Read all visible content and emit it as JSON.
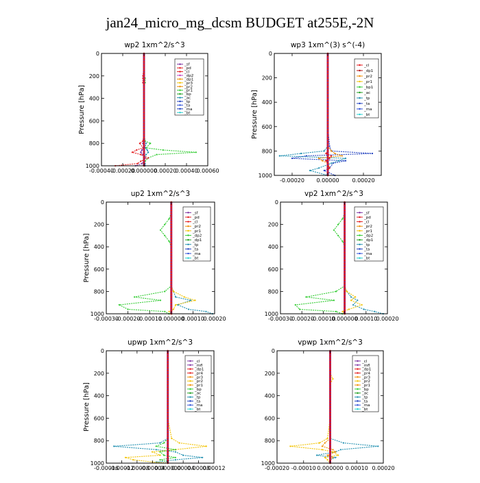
{
  "title": "jan24_micro_mg_dcsm  BUDGET at255E,-2N",
  "colors": {
    "red": "#e41a1c",
    "purple": "#7b2fa0",
    "magenta": "#c040c0",
    "orange": "#f08c00",
    "yellow": "#f2c200",
    "green": "#33cc33",
    "darkgreen": "#1b9e1b",
    "teal": "#1f8fb0",
    "navy": "#1f3fbf",
    "blue": "#2d4fd8",
    "cyan": "#22d0d0",
    "darkred": "#b01010"
  },
  "chart_data": [
    {
      "type": "line",
      "title": "wp2   1xm^2/s^3",
      "ylabel": "Pressure [hPa]",
      "xlim": [
        -0.0004,
        0.0006
      ],
      "ylim": [
        1000,
        0
      ],
      "xticks": [
        -0.0004,
        -0.0002,
        0,
        0.0002,
        0.0004,
        0.0006
      ],
      "xtick_labels": [
        "-0.00040",
        "-0.00020",
        "0.000000",
        "0.00020",
        "0.00040",
        "0.00060"
      ],
      "yticks": [
        0,
        200,
        400,
        600,
        800,
        1000
      ],
      "ytick_labels": [
        "0",
        "200",
        "400",
        "600",
        "800",
        "1000"
      ],
      "legend": [
        "_sf",
        "_pd",
        "_cl",
        "_dp2",
        "_dp1",
        "_pr3",
        "_pr2",
        "_pr1",
        "_bp",
        "_ac",
        "_tp",
        "_ta",
        "_ma",
        "_bt"
      ],
      "legend_colors": [
        "purple",
        "red",
        "red",
        "magenta",
        "orange",
        "yellow",
        "orange",
        "green",
        "darkgreen",
        "teal",
        "navy",
        "blue",
        "navy",
        "cyan"
      ],
      "pressure": [
        0,
        100,
        200,
        220,
        260,
        300,
        400,
        500,
        600,
        700,
        780,
        800,
        840,
        860,
        880,
        900,
        930,
        960,
        980,
        1000
      ],
      "series": [
        {
          "color": "green",
          "values": [
            0,
            0,
            0,
            1e-05,
            1e-05,
            0,
            0,
            0,
            0,
            0,
            1e-05,
            6e-05,
            2e-05,
            0.00018,
            0.00049,
            0.00012,
            4e-05,
            1e-05,
            0,
            0
          ]
        },
        {
          "color": "red",
          "values": [
            0,
            0,
            -1e-05,
            -1e-05,
            -1e-05,
            0,
            0,
            0,
            0,
            0,
            -1e-05,
            -4e-05,
            -1e-05,
            -7e-05,
            -0.00011,
            -3e-05,
            4e-05,
            -3e-05,
            -6e-05,
            -0.00027
          ]
        },
        {
          "color": "purple",
          "values": [
            0,
            0,
            0,
            0,
            0,
            0,
            0,
            0,
            0,
            0,
            0,
            -1e-05,
            0,
            -2e-05,
            -3e-05,
            -1e-05,
            1e-05,
            0,
            -2e-05,
            -8e-05
          ]
        },
        {
          "color": "teal",
          "values": [
            0,
            0,
            0,
            0,
            0,
            0,
            0,
            0,
            0,
            0,
            0,
            2e-05,
            1e-05,
            3e-05,
            4e-05,
            2e-05,
            0,
            0,
            1e-05,
            1e-05
          ]
        }
      ]
    },
    {
      "type": "line",
      "title": "wp3   1xm^(3) s^(-4)",
      "ylabel": "Pressure [hPa]",
      "xlim": [
        -0.0003,
        0.0003
      ],
      "ylim": [
        1000,
        0
      ],
      "xticks": [
        -0.0002,
        0,
        0.0002
      ],
      "xtick_labels": [
        "-0.00020",
        "0.00000",
        "0.00020"
      ],
      "yticks": [
        0,
        200,
        400,
        600,
        800,
        1000
      ],
      "ytick_labels": [
        "0",
        "200",
        "400",
        "600",
        "800",
        "1000"
      ],
      "legend": [
        "_cl",
        "_dp1",
        "_pr2",
        "_pr1",
        "_bp1",
        "_ac",
        "_tp",
        "_ta",
        "_ma",
        "_bt"
      ],
      "legend_colors": [
        "red",
        "darkred",
        "orange",
        "yellow",
        "green",
        "darkgreen",
        "teal",
        "navy",
        "blue",
        "cyan"
      ],
      "pressure": [
        0,
        100,
        200,
        400,
        600,
        760,
        800,
        820,
        840,
        860,
        880,
        900,
        940,
        960,
        1000
      ],
      "series": [
        {
          "color": "navy",
          "values": [
            0,
            0,
            0,
            0,
            0,
            1e-05,
            2e-05,
            0.00025,
            -0.00012,
            -0.0002,
            0.0001,
            3e-05,
            1e-05,
            -2e-05,
            4e-05
          ]
        },
        {
          "color": "teal",
          "values": [
            0,
            0,
            0,
            0,
            0,
            0,
            -2e-05,
            -0.00015,
            -0.00027,
            0.0001,
            6e-05,
            2e-05,
            -5e-05,
            -0.0001,
            0
          ]
        },
        {
          "color": "orange",
          "values": [
            0,
            0,
            0,
            0,
            0,
            0,
            2e-05,
            4e-05,
            8e-05,
            -5e-05,
            -3e-05,
            0,
            1e-05,
            0,
            0
          ]
        },
        {
          "color": "red",
          "values": [
            0,
            0,
            0,
            0,
            0,
            0,
            0,
            -1e-05,
            2e-05,
            1e-05,
            -1e-05,
            0,
            1e-05,
            0,
            0
          ]
        }
      ]
    },
    {
      "type": "line",
      "title": "up2   1xm^2/s^3",
      "ylabel": "Pressure [hPa]",
      "xlim": [
        -0.0003,
        0.0002
      ],
      "ylim": [
        1000,
        0
      ],
      "xticks": [
        -0.0003,
        -0.0002,
        -0.0001,
        0,
        0.0001,
        0.0002
      ],
      "xtick_labels": [
        "-0.00030",
        "-0.00020",
        "-0.00010",
        "0.000000",
        "0.00010",
        "0.00020"
      ],
      "yticks": [
        0,
        200,
        400,
        600,
        800,
        1000
      ],
      "ytick_labels": [
        "0",
        "200",
        "400",
        "600",
        "800",
        "1000"
      ],
      "legend": [
        "_sf",
        "_pd",
        "_cl",
        "_pr2",
        "_pr1",
        "_dp2",
        "_dp1",
        "_tp",
        "_ta",
        "_ma",
        "_bt"
      ],
      "legend_colors": [
        "purple",
        "red",
        "red",
        "orange",
        "yellow",
        "green",
        "darkgreen",
        "teal",
        "navy",
        "blue",
        "cyan"
      ],
      "pressure": [
        0,
        100,
        150,
        200,
        250,
        300,
        350,
        400,
        600,
        750,
        800,
        850,
        880,
        920,
        960,
        980,
        1000
      ],
      "series": [
        {
          "color": "green",
          "values": [
            0,
            0,
            -1e-05,
            -3e-05,
            -5e-05,
            -3e-05,
            -1e-05,
            0,
            0,
            0,
            -3e-05,
            -0.00017,
            -5e-05,
            -0.00024,
            -0.0002,
            -3e-05,
            -1e-05
          ]
        },
        {
          "color": "teal",
          "values": [
            0,
            0,
            0,
            0,
            0,
            0,
            0,
            0,
            0,
            0,
            1e-05,
            2e-05,
            9e-05,
            3e-05,
            8e-05,
            0.00016,
            0.00019
          ]
        },
        {
          "color": "yellow",
          "values": [
            0,
            0,
            0,
            0,
            0,
            0,
            0,
            0,
            0,
            0,
            1e-05,
            6e-05,
            0.00011,
            2e-05,
            1e-05,
            -1e-05,
            0
          ]
        },
        {
          "color": "purple",
          "values": [
            0,
            0,
            0,
            0,
            0,
            0,
            0,
            0,
            0,
            0,
            0,
            0,
            0,
            0,
            0,
            0,
            0
          ]
        }
      ]
    },
    {
      "type": "line",
      "title": "vp2   1xm^2/s^3",
      "ylabel": "",
      "xlim": [
        -0.0003,
        0.0002
      ],
      "ylim": [
        1000,
        0
      ],
      "xticks": [
        -0.0003,
        -0.0002,
        -0.0001,
        0,
        0.0001,
        0.0002
      ],
      "xtick_labels": [
        "-0.00030",
        "-0.00020",
        "-0.00010",
        "0.000000",
        "0.00010",
        "0.00020"
      ],
      "yticks": [
        0,
        200,
        400,
        600,
        800,
        1000
      ],
      "ytick_labels": [
        "0",
        "200",
        "400",
        "600",
        "800",
        "1000"
      ],
      "legend": [
        "_sf",
        "_pd",
        "_cl",
        "_pr2",
        "_pr1",
        "_dp2",
        "_dp1",
        "_tp",
        "_ta",
        "_ma",
        "_bt"
      ],
      "legend_colors": [
        "purple",
        "red",
        "red",
        "orange",
        "yellow",
        "green",
        "darkgreen",
        "teal",
        "navy",
        "blue",
        "cyan"
      ],
      "pressure": [
        0,
        100,
        150,
        200,
        250,
        300,
        350,
        400,
        600,
        750,
        800,
        850,
        880,
        920,
        960,
        980,
        1000
      ],
      "series": [
        {
          "color": "green",
          "values": [
            0,
            0,
            -1e-05,
            -3e-05,
            -5e-05,
            -3e-05,
            -1e-05,
            0,
            0,
            0,
            -4e-05,
            -0.00018,
            -5e-05,
            -0.00023,
            -0.00021,
            -4e-05,
            -1e-05
          ]
        },
        {
          "color": "teal",
          "values": [
            0,
            0,
            0,
            0,
            0,
            0,
            0,
            0,
            0,
            0,
            1e-05,
            3e-05,
            6e-05,
            4e-05,
            9e-05,
            0.00014,
            0.00018
          ]
        },
        {
          "color": "yellow",
          "values": [
            0,
            0,
            0,
            0,
            0,
            0,
            0,
            0,
            0,
            0,
            1e-05,
            5e-05,
            3e-05,
            8e-05,
            2e-05,
            -1e-05,
            0
          ]
        },
        {
          "color": "purple",
          "values": [
            0,
            0,
            0,
            0,
            0,
            0,
            0,
            0,
            0,
            0,
            0,
            0,
            0,
            0,
            0,
            0,
            0
          ]
        }
      ]
    },
    {
      "type": "line",
      "title": "upwp   1xm^2/s^3",
      "ylabel": "Pressure [hPa]",
      "xlim": [
        -0.00016,
        0.00012
      ],
      "ylim": [
        1000,
        0
      ],
      "xticks": [
        -0.00016,
        -0.00012,
        -8e-05,
        -4e-05,
        0,
        4e-05,
        8e-05,
        0.00012
      ],
      "xtick_labels": [
        "-0.00016",
        "-0.00012",
        "-0.00008",
        "-0.00004",
        "0.000000",
        "0.00004",
        "0.00008",
        "0.00012"
      ],
      "yticks": [
        0,
        200,
        400,
        600,
        800,
        1000
      ],
      "ytick_labels": [
        "0",
        "200",
        "400",
        "600",
        "800",
        "1000"
      ],
      "legend": [
        "_cl",
        "_mfl",
        "_dp1",
        "_pr4",
        "_pr3",
        "_pr2",
        "_pr1",
        "_bp",
        "_ac",
        "_tp",
        "_ta",
        "_ma",
        "_bt"
      ],
      "legend_colors": [
        "purple",
        "purple",
        "red",
        "red",
        "orange",
        "yellow",
        "orange",
        "green",
        "darkgreen",
        "teal",
        "navy",
        "blue",
        "cyan"
      ],
      "pressure": [
        0,
        100,
        200,
        400,
        600,
        780,
        820,
        850,
        880,
        900,
        930,
        950,
        970,
        990,
        1000
      ],
      "series": [
        {
          "color": "teal",
          "values": [
            0,
            0,
            0,
            0,
            0,
            0,
            -2e-05,
            -0.00014,
            -3e-05,
            2e-05,
            4e-05,
            9e-05,
            2e-05,
            -3e-05,
            0
          ]
        },
        {
          "color": "yellow",
          "values": [
            0,
            0,
            0,
            0,
            0,
            1e-05,
            3e-05,
            0.0001,
            2e-05,
            -4e-05,
            -2e-05,
            -0.00011,
            -9e-05,
            -4e-05,
            0
          ]
        },
        {
          "color": "green",
          "values": [
            0,
            0,
            0,
            0,
            0,
            0,
            -1e-05,
            -3e-05,
            2e-05,
            -2e-05,
            -1e-05,
            2e-05,
            -2e-05,
            0,
            0
          ]
        },
        {
          "color": "purple",
          "values": [
            0,
            0,
            0,
            0,
            0,
            0,
            0,
            0,
            0,
            0,
            0,
            0,
            0,
            0,
            0
          ]
        }
      ]
    },
    {
      "type": "line",
      "title": "vpwp   1xm^2/s^3",
      "ylabel": "",
      "xlim": [
        -0.0002,
        0.0002
      ],
      "ylim": [
        1000,
        0
      ],
      "xticks": [
        -0.0002,
        -0.0001,
        0,
        0.0001,
        0.0002
      ],
      "xtick_labels": [
        "-0.00020",
        "-0.00010",
        "0.000000",
        "0.00010",
        "0.00020"
      ],
      "yticks": [
        0,
        200,
        400,
        600,
        800,
        1000
      ],
      "ytick_labels": [
        "0",
        "200",
        "400",
        "600",
        "800",
        "1000"
      ],
      "legend": [
        "_cl",
        "_mfl",
        "_dp1",
        "_pr4",
        "_pr3",
        "_pr2",
        "_pr1",
        "_bp",
        "_ac",
        "_tp",
        "_ta",
        "_ma",
        "_bt"
      ],
      "legend_colors": [
        "purple",
        "purple",
        "red",
        "red",
        "orange",
        "yellow",
        "orange",
        "green",
        "darkgreen",
        "teal",
        "navy",
        "blue",
        "cyan"
      ],
      "pressure": [
        0,
        100,
        200,
        250,
        300,
        400,
        600,
        780,
        820,
        850,
        880,
        900,
        930,
        950,
        970,
        1000
      ],
      "series": [
        {
          "color": "teal",
          "values": [
            0,
            0,
            0,
            0,
            0,
            0,
            0,
            0,
            5e-05,
            0.00018,
            4e-05,
            2e-05,
            -5e-05,
            2e-05,
            0,
            0
          ]
        },
        {
          "color": "yellow",
          "values": [
            0,
            0,
            0,
            1e-05,
            0,
            0,
            0,
            -1e-05,
            -4e-05,
            -0.00015,
            -3e-05,
            1e-05,
            3e-05,
            -2e-05,
            -1e-05,
            0
          ]
        },
        {
          "color": "orange",
          "values": [
            0,
            0,
            0,
            0,
            0,
            0,
            0,
            0,
            -2e-05,
            -3e-05,
            1e-05,
            2e-05,
            -1e-05,
            1e-05,
            0,
            0
          ]
        },
        {
          "color": "purple",
          "values": [
            0,
            0,
            0,
            0,
            0,
            0,
            0,
            0,
            0,
            0,
            0,
            0,
            0,
            0,
            0,
            0
          ]
        }
      ]
    }
  ]
}
